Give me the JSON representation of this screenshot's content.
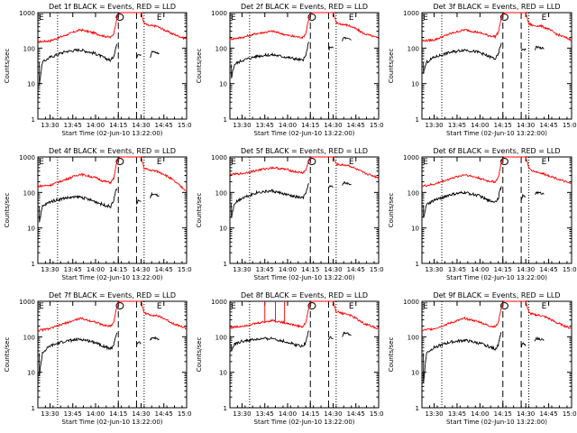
{
  "chart_data": {
    "type": "line",
    "panel_count": 9,
    "ylabel": "Counts/sec",
    "xlabel": "Start Time (02-Jun-10 13:22:00)",
    "y_scale": "log",
    "ylim": [
      1,
      1000
    ],
    "xlim": [
      "13:22",
      "15:00"
    ],
    "y_ticks": [
      "1",
      "10",
      "100",
      "1000"
    ],
    "x_ticks": [
      "13:30",
      "13:45",
      "14:00",
      "14:15",
      "14:30",
      "14:45",
      "15:00"
    ],
    "markers": {
      "dotted_lines": [
        "13:35",
        "14:32"
      ],
      "dashed_lines": [
        "14:15",
        "14:27"
      ],
      "symbols": [
        "o",
        "E"
      ]
    },
    "series_colors": {
      "events": "#000000",
      "lld": "#ff0000"
    },
    "titles": [
      "Det 1f BLACK = Events, RED = LLD",
      "Det 2f BLACK = Events, RED = LLD",
      "Det 3f BLACK = Events, RED = LLD",
      "Det 4f BLACK = Events, RED = LLD",
      "Det 5f BLACK = Events, RED = LLD",
      "Det 6f BLACK = Events, RED = LLD",
      "Det 7f BLACK = Events, RED = LLD",
      "Det 8f BLACK = Events, RED = LLD",
      "Det 9f BLACK = Events, RED = LLD"
    ],
    "panels": [
      {
        "lld": {
          "x": [
            "13:22",
            "13:30",
            "13:40",
            "13:50",
            "14:00",
            "14:05",
            "14:10",
            "14:12",
            "14:14",
            "14:16",
            "14:18",
            "14:20",
            "14:22",
            "14:24",
            "14:26",
            "14:28",
            "14:30",
            "14:32",
            "14:35",
            "14:40",
            "14:45",
            "14:50",
            "15:00"
          ],
          "y": [
            150,
            160,
            230,
            330,
            260,
            220,
            200,
            260,
            700,
            1000,
            1000,
            1000,
            1000,
            1000,
            1000,
            1000,
            1000,
            500,
            430,
            420,
            330,
            260,
            180
          ]
        },
        "events": {
          "x": [
            "13:23",
            "13:25",
            "13:30",
            "13:40",
            "13:50",
            "14:00",
            "14:05",
            "14:10",
            "14:12",
            "14:13",
            "14:14"
          ],
          "y": [
            10,
            40,
            55,
            80,
            90,
            70,
            55,
            45,
            60,
            90,
            130
          ],
          "x2": [
            "14:27",
            "14:28",
            "14:30"
          ],
          "y2": [
            55,
            70,
            65
          ],
          "x3": [
            "14:36",
            "14:37",
            "14:40",
            "14:42"
          ],
          "y3": [
            55,
            80,
            75,
            70
          ]
        }
      },
      {
        "lld": {
          "x": [
            "13:22",
            "13:30",
            "13:40",
            "13:50",
            "14:00",
            "14:05",
            "14:10",
            "14:12",
            "14:14",
            "14:16",
            "14:18",
            "14:20",
            "14:22",
            "14:24",
            "14:26",
            "14:28",
            "14:30",
            "14:32",
            "14:35",
            "14:40",
            "14:45",
            "14:50",
            "15:00"
          ],
          "y": [
            180,
            200,
            260,
            300,
            230,
            210,
            200,
            260,
            700,
            1000,
            1000,
            1000,
            1000,
            1000,
            1000,
            1000,
            1000,
            520,
            480,
            440,
            350,
            260,
            190
          ]
        },
        "events": {
          "x": [
            "13:23",
            "13:25",
            "13:30",
            "13:40",
            "13:50",
            "14:00",
            "14:05",
            "14:10",
            "14:12",
            "14:13",
            "14:14"
          ],
          "y": [
            15,
            35,
            45,
            60,
            65,
            55,
            50,
            45,
            60,
            100,
            150
          ],
          "x2": [
            "14:27",
            "14:28",
            "14:30"
          ],
          "y2": [
            90,
            110,
            100
          ],
          "x3": [
            "14:36",
            "14:37",
            "14:40",
            "14:42"
          ],
          "y3": [
            160,
            200,
            180,
            170
          ]
        }
      },
      {
        "lld": {
          "x": [
            "13:22",
            "13:30",
            "13:40",
            "13:50",
            "14:00",
            "14:05",
            "14:10",
            "14:12",
            "14:14",
            "14:16",
            "14:18",
            "14:20",
            "14:22",
            "14:24",
            "14:26",
            "14:28",
            "14:30",
            "14:32",
            "14:35",
            "14:40",
            "14:45",
            "14:50",
            "15:00"
          ],
          "y": [
            160,
            170,
            250,
            330,
            270,
            230,
            210,
            280,
            700,
            1000,
            1000,
            1000,
            1000,
            1000,
            1000,
            1000,
            1000,
            480,
            430,
            420,
            340,
            250,
            170
          ]
        },
        "events": {
          "x": [
            "13:23",
            "13:25",
            "13:30",
            "13:40",
            "13:50",
            "14:00",
            "14:05",
            "14:10",
            "14:12",
            "14:13",
            "14:14"
          ],
          "y": [
            20,
            40,
            55,
            75,
            90,
            75,
            60,
            50,
            65,
            100,
            140
          ],
          "x2": [
            "14:27",
            "14:28",
            "14:30"
          ],
          "y2": [
            80,
            95,
            90
          ],
          "x3": [
            "14:36",
            "14:37",
            "14:40",
            "14:42"
          ],
          "y3": [
            90,
            110,
            100,
            95
          ]
        }
      },
      {
        "lld": {
          "x": [
            "13:22",
            "13:30",
            "13:40",
            "13:50",
            "14:00",
            "14:05",
            "14:10",
            "14:12",
            "14:14",
            "14:16",
            "14:18",
            "14:20",
            "14:22",
            "14:24",
            "14:26",
            "14:28",
            "14:30",
            "14:32",
            "14:35",
            "14:40",
            "14:45",
            "14:50",
            "15:00"
          ],
          "y": [
            150,
            160,
            230,
            330,
            260,
            210,
            190,
            250,
            700,
            1000,
            1000,
            1000,
            1000,
            1000,
            1000,
            1000,
            1000,
            480,
            430,
            400,
            330,
            240,
            110
          ]
        },
        "events": {
          "x": [
            "13:23",
            "13:25",
            "13:30",
            "13:40",
            "13:50",
            "14:00",
            "14:05",
            "14:10",
            "14:12",
            "14:13",
            "14:14"
          ],
          "y": [
            15,
            40,
            55,
            70,
            75,
            55,
            45,
            40,
            60,
            100,
            130
          ],
          "x2": [
            "14:27",
            "14:28",
            "14:30"
          ],
          "y2": [
            45,
            60,
            55
          ],
          "x3": [
            "14:36",
            "14:37",
            "14:40",
            "14:42"
          ],
          "y3": [
            70,
            90,
            85,
            80
          ]
        }
      },
      {
        "lld": {
          "x": [
            "13:22",
            "13:30",
            "13:40",
            "13:50",
            "14:00",
            "14:05",
            "14:10",
            "14:12",
            "14:14",
            "14:16",
            "14:18",
            "14:20",
            "14:22",
            "14:24",
            "14:26",
            "14:28",
            "14:30",
            "14:32",
            "14:35",
            "14:40",
            "14:45",
            "14:50",
            "15:00"
          ],
          "y": [
            320,
            340,
            420,
            500,
            440,
            380,
            360,
            420,
            800,
            1000,
            1000,
            1000,
            1000,
            1000,
            1000,
            1000,
            1000,
            620,
            600,
            580,
            460,
            360,
            260
          ]
        },
        "events": {
          "x": [
            "13:23",
            "13:25",
            "13:30",
            "13:40",
            "13:50",
            "14:00",
            "14:05",
            "14:10",
            "14:12",
            "14:13",
            "14:14"
          ],
          "y": [
            20,
            50,
            70,
            100,
            110,
            85,
            75,
            70,
            90,
            140,
            180
          ],
          "x2": [
            "14:27",
            "14:28",
            "14:30"
          ],
          "y2": [
            130,
            150,
            140
          ],
          "x3": [
            "14:36",
            "14:37",
            "14:40",
            "14:42"
          ],
          "y3": [
            160,
            190,
            175,
            165
          ]
        }
      },
      {
        "lld": {
          "x": [
            "13:22",
            "13:30",
            "13:40",
            "13:50",
            "14:00",
            "14:05",
            "14:10",
            "14:12",
            "14:14",
            "14:16",
            "14:18",
            "14:20",
            "14:22",
            "14:24",
            "14:26",
            "14:28",
            "14:30",
            "14:32",
            "14:35",
            "14:40",
            "14:45",
            "14:50",
            "15:00"
          ],
          "y": [
            150,
            170,
            240,
            320,
            250,
            210,
            200,
            260,
            700,
            1000,
            1000,
            1000,
            1000,
            1000,
            1000,
            1000,
            1000,
            480,
            400,
            350,
            300,
            250,
            170
          ]
        },
        "events": {
          "x": [
            "13:23",
            "13:25",
            "13:30",
            "13:40",
            "13:50",
            "14:00",
            "14:05",
            "14:10",
            "14:12",
            "14:13",
            "14:14"
          ],
          "y": [
            20,
            45,
            60,
            85,
            100,
            80,
            60,
            55,
            70,
            110,
            150
          ],
          "x2": [
            "14:27",
            "14:28",
            "14:30"
          ],
          "y2": [
            60,
            80,
            75
          ],
          "x3": [
            "14:36",
            "14:37",
            "14:40",
            "14:42"
          ],
          "y3": [
            90,
            100,
            95,
            90
          ]
        }
      },
      {
        "lld": {
          "x": [
            "13:22",
            "13:30",
            "13:40",
            "13:50",
            "14:00",
            "14:05",
            "14:10",
            "14:12",
            "14:14",
            "14:16",
            "14:18",
            "14:20",
            "14:22",
            "14:24",
            "14:26",
            "14:28",
            "14:30",
            "14:32",
            "14:35",
            "14:40",
            "14:45",
            "14:50",
            "15:00"
          ],
          "y": [
            150,
            170,
            240,
            330,
            260,
            210,
            200,
            260,
            700,
            1000,
            1000,
            1000,
            1000,
            1000,
            1000,
            1000,
            1000,
            480,
            420,
            400,
            330,
            250,
            170
          ]
        },
        "events": {
          "x": [
            "13:23",
            "13:25",
            "13:30",
            "13:40",
            "13:50",
            "14:00",
            "14:05",
            "14:10",
            "14:12",
            "14:13",
            "14:14"
          ],
          "y": [
            8,
            35,
            55,
            75,
            85,
            70,
            55,
            45,
            60,
            95,
            130
          ],
          "x2": [
            "14:27",
            "14:28",
            "14:30"
          ],
          "y2": [
            55,
            70,
            65
          ],
          "x3": [
            "14:36",
            "14:37",
            "14:40",
            "14:42"
          ],
          "y3": [
            80,
            95,
            90,
            85
          ]
        }
      },
      {
        "lld": {
          "x": [
            "13:22",
            "13:30",
            "13:40",
            "13:50",
            "14:00",
            "14:05",
            "14:10",
            "14:12",
            "14:14",
            "14:16",
            "14:18",
            "14:20",
            "14:22",
            "14:24",
            "14:26",
            "14:28",
            "14:30",
            "14:32",
            "14:35",
            "14:40",
            "14:45",
            "14:50",
            "15:00"
          ],
          "y": [
            180,
            200,
            240,
            290,
            240,
            210,
            190,
            250,
            700,
            1000,
            1000,
            1000,
            1000,
            1000,
            1000,
            1000,
            1000,
            520,
            470,
            430,
            330,
            240,
            170
          ]
        },
        "events": {
          "x": [
            "13:23",
            "13:25",
            "13:30",
            "13:40",
            "13:50",
            "14:00",
            "14:05",
            "14:10",
            "14:12",
            "14:13",
            "14:14"
          ],
          "y": [
            40,
            60,
            75,
            85,
            90,
            70,
            60,
            55,
            70,
            110,
            150
          ],
          "x2": [
            "14:27",
            "14:28",
            "14:30"
          ],
          "y2": [
            80,
            100,
            90
          ],
          "x3": [
            "14:36",
            "14:37",
            "14:40",
            "14:42"
          ],
          "y3": [
            100,
            130,
            120,
            110
          ]
        },
        "lld_spikes": {
          "x": [
            "13:45",
            "13:52",
            "13:58"
          ],
          "y": [
            1000,
            1000,
            1000
          ]
        }
      },
      {
        "lld": {
          "x": [
            "13:22",
            "13:30",
            "13:40",
            "13:50",
            "14:00",
            "14:05",
            "14:10",
            "14:12",
            "14:14",
            "14:16",
            "14:18",
            "14:20",
            "14:22",
            "14:24",
            "14:26",
            "14:28",
            "14:30",
            "14:32",
            "14:35",
            "14:40",
            "14:45",
            "14:50",
            "15:00"
          ],
          "y": [
            150,
            170,
            240,
            330,
            260,
            210,
            190,
            250,
            700,
            1000,
            1000,
            1000,
            1000,
            1000,
            1000,
            1000,
            1000,
            480,
            420,
            400,
            330,
            250,
            170
          ]
        },
        "events": {
          "x": [
            "13:23",
            "13:25",
            "13:30",
            "13:40",
            "13:50",
            "14:00",
            "14:05",
            "14:10",
            "14:12",
            "14:13",
            "14:14"
          ],
          "y": [
            5,
            35,
            50,
            70,
            80,
            65,
            55,
            45,
            60,
            100,
            130
          ],
          "x2": [
            "14:27",
            "14:28",
            "14:30"
          ],
          "y2": [
            50,
            65,
            60
          ],
          "x3": [
            "14:36",
            "14:37",
            "14:40",
            "14:42"
          ],
          "y3": [
            75,
            90,
            85,
            80
          ]
        }
      }
    ]
  }
}
